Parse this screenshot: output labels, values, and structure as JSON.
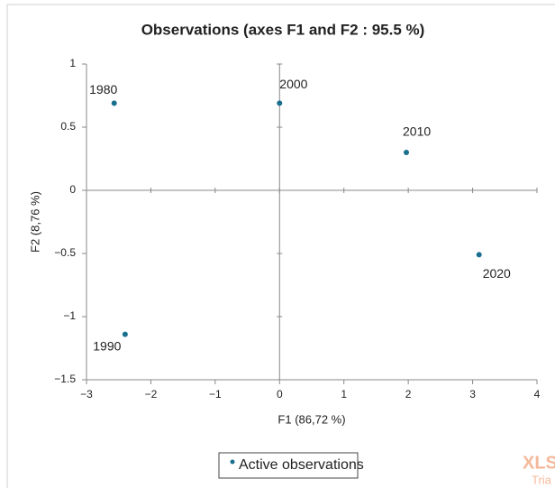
{
  "chart_data": {
    "type": "scatter",
    "title": "Observations (axes F1 and F2 : 95.5 %)",
    "x_label": "F1 (86,72 %)",
    "y_label": "F2 (8,76 %)",
    "series": [
      {
        "name": "Active observations",
        "color": "#1a6e8e",
        "x": [
          -2.57,
          -2.4,
          0.0,
          1.97,
          3.1
        ],
        "values": [
          0.69,
          -1.14,
          0.69,
          0.3,
          -0.51
        ],
        "labels": [
          "1980",
          "1990",
          "2000",
          "2010",
          "2020"
        ]
      }
    ],
    "xlim": [
      -3,
      4
    ],
    "ylim": [
      -1.5,
      1
    ],
    "xticks": [
      {
        "value": -3,
        "label": "−3"
      },
      {
        "value": -2,
        "label": "−2"
      },
      {
        "value": -1,
        "label": "−1"
      },
      0,
      1,
      2,
      3,
      4
    ],
    "yticks": [
      {
        "value": -1.5,
        "label": "−1.5"
      },
      {
        "value": -1,
        "label": "−1"
      },
      {
        "value": -0.5,
        "label": "−0.5"
      },
      0,
      0.5,
      1
    ],
    "watermark": "XLSTAT",
    "watermark_sub": "Tria"
  }
}
